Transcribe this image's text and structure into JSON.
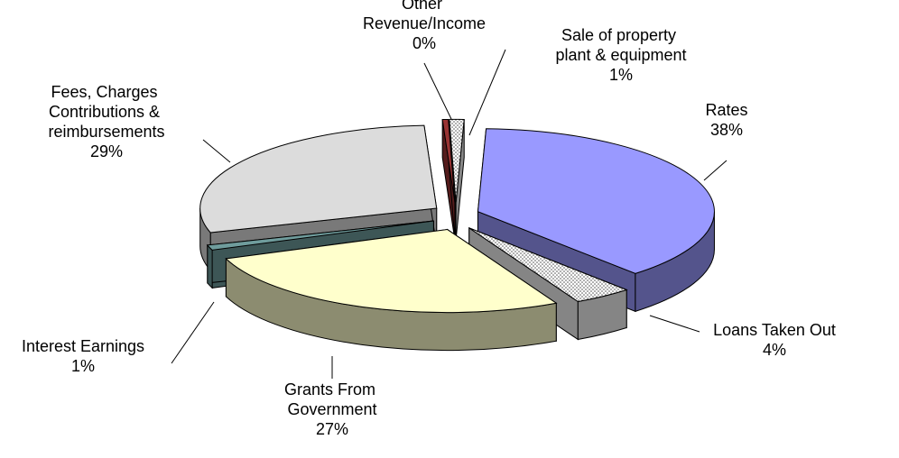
{
  "chart_data": {
    "type": "pie3d",
    "categories": [
      "Rates",
      "Loans Taken Out",
      "Grants From Government",
      "Interest Earnings",
      "Fees, Charges Contributions & reimbursements",
      "Other Revenue/Income",
      "Sale of property plant & equipment"
    ],
    "values": [
      38,
      4,
      27,
      1,
      29,
      0.4,
      1
    ],
    "value_labels": [
      "38%",
      "4%",
      "27%",
      "1%",
      "29%",
      "0%",
      "1%"
    ],
    "colors": [
      "#9999ff",
      "#f2f2f2",
      "#ffffcc",
      "#6f9c9c",
      "#dcdcdc",
      "#993333",
      "#f5f5f5"
    ]
  }
}
